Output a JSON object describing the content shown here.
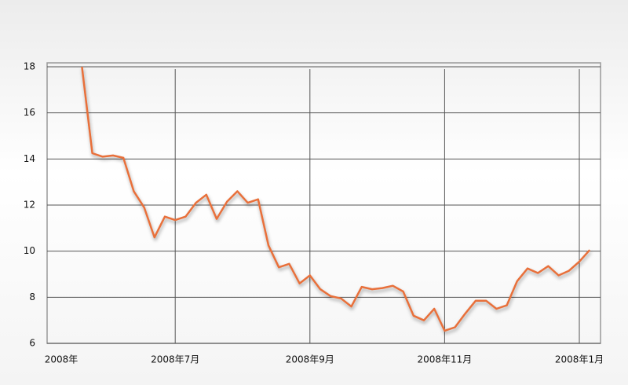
{
  "chart_data": {
    "type": "line",
    "categories": [
      "2008年",
      null,
      null,
      null,
      null,
      null,
      null,
      null,
      null,
      null,
      null,
      "2008年7月",
      null,
      null,
      null,
      null,
      null,
      null,
      null,
      null,
      null,
      null,
      null,
      null,
      "2008年9月",
      null,
      null,
      null,
      null,
      null,
      null,
      null,
      null,
      null,
      null,
      null,
      null,
      "2008年11月",
      null,
      null,
      null,
      null,
      null,
      null,
      null,
      null,
      null,
      null,
      null,
      null,
      "2008年1月",
      null
    ],
    "values": [
      null,
      null,
      18,
      14.25,
      14.1,
      14.15,
      14.05,
      12.6,
      11.9,
      10.6,
      11.5,
      11.35,
      11.5,
      12.1,
      12.45,
      11.4,
      12.15,
      12.6,
      12.1,
      12.25,
      10.25,
      9.3,
      9.45,
      8.6,
      8.95,
      8.35,
      8.05,
      7.95,
      7.6,
      8.45,
      8.35,
      8.4,
      8.5,
      8.25,
      7.2,
      7.0,
      7.5,
      6.55,
      6.7,
      7.3,
      7.85,
      7.85,
      7.5,
      7.65,
      8.7,
      9.25,
      9.05,
      9.35,
      8.95,
      9.15,
      9.55,
      10.05
    ],
    "color": "#e8703a",
    "ylim": [
      6,
      18
    ],
    "yticks": [
      6,
      8,
      10,
      12,
      14,
      16,
      18
    ],
    "grid": true
  }
}
